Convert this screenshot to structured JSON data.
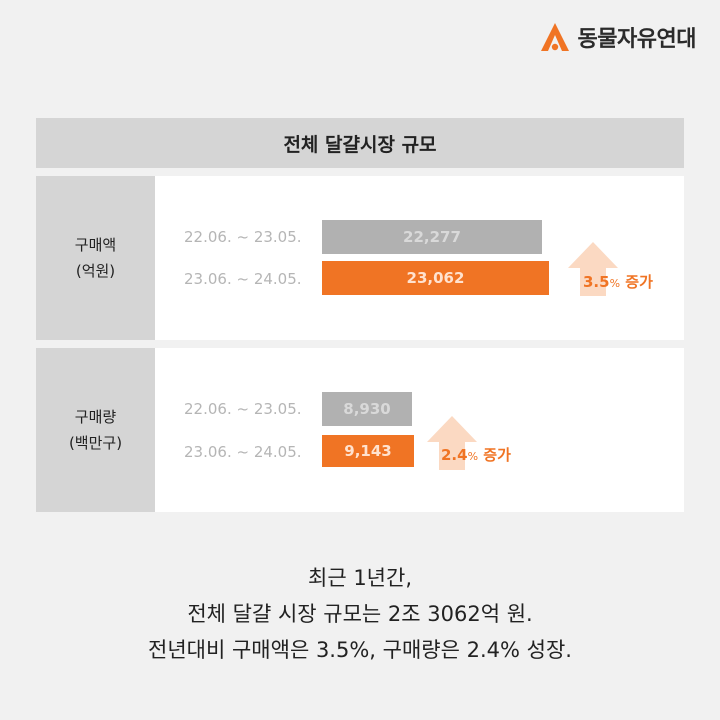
{
  "brand": {
    "name": "동물자유연대",
    "accent": "#f07424"
  },
  "title": "전체 달걀시장 규모",
  "chart_data": [
    {
      "type": "bar",
      "ylabel": "구매액 (억원)",
      "categories": [
        "22.06. ~ 23.05.",
        "23.06. ~ 24.05."
      ],
      "values": [
        22277,
        23062
      ],
      "value_labels": [
        "22,277",
        "23,062"
      ],
      "growth": {
        "value": "3.5",
        "unit": "%",
        "text": "증가"
      },
      "xlim": [
        0,
        24000
      ]
    },
    {
      "type": "bar",
      "ylabel": "구매량 (백만구)",
      "categories": [
        "22.06. ~ 23.05.",
        "23.06. ~ 24.05."
      ],
      "values": [
        8930,
        9143
      ],
      "value_labels": [
        "8,930",
        "9,143"
      ],
      "growth": {
        "value": "2.4",
        "unit": "%",
        "text": "증가"
      },
      "xlim": [
        0,
        24000
      ]
    }
  ],
  "panels": [
    {
      "label_line1": "구매액",
      "label_line2": "(억원)"
    },
    {
      "label_line1": "구매량",
      "label_line2": "(백만구)"
    }
  ],
  "summary": {
    "line1": "최근 1년간,",
    "line2": "전체 달걀 시장 규모는 2조 3062억 원.",
    "line3": "전년대비 구매액은 3.5%, 구매량은 2.4% 성장."
  }
}
